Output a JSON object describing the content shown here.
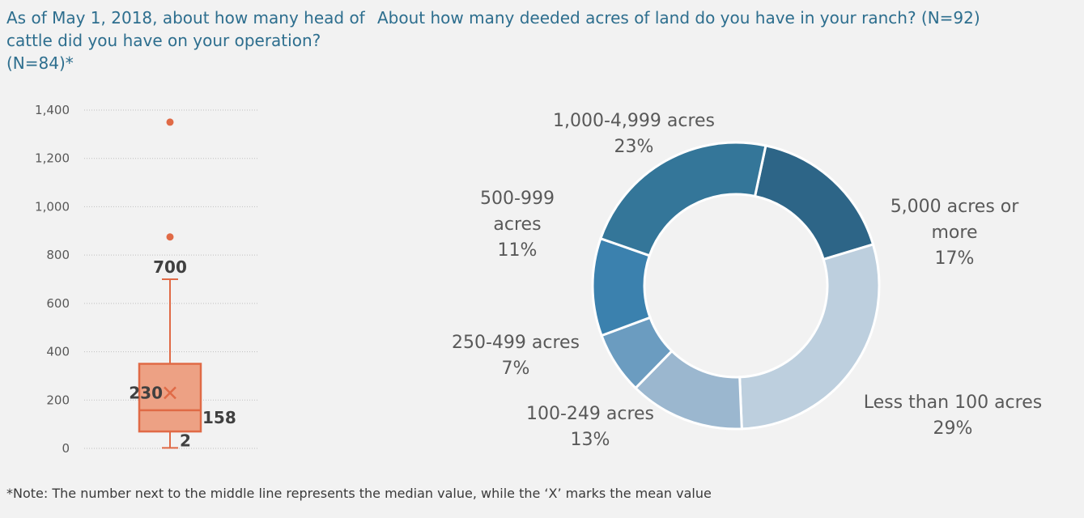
{
  "colors": {
    "title": "#2d6e8e",
    "box_fill": "#eda184",
    "box_stroke": "#e06a46",
    "gridline": "#bfbfbf",
    "tick_text": "#595959",
    "label_text": "#595959",
    "value_text": "#404040",
    "background": "#f2f2f2"
  },
  "chart_data": [
    {
      "type": "box",
      "title": "As of May 1, 2018, about how many head of cattle did you have on your operation? (N=84)*",
      "ylim": [
        0,
        1400
      ],
      "y_ticks": [
        0,
        200,
        400,
        600,
        800,
        1000,
        1200,
        1400
      ],
      "y_tick_labels": [
        "0",
        "200",
        "400",
        "600",
        "800",
        "1,000",
        "1,200",
        "1,400"
      ],
      "grid": true,
      "stats": {
        "min": 2,
        "q1": 70,
        "median": 158,
        "mean": 230,
        "q3": 350,
        "max": 700
      },
      "outliers": [
        875,
        1350
      ],
      "labels": {
        "max": "700",
        "mean": "230",
        "median": "158",
        "min": "2"
      }
    },
    {
      "type": "pie",
      "donut": true,
      "title": "About how many deeded acres of land do you have in your ranch? (N=92)",
      "slices": [
        {
          "label": "5,000 acres or more",
          "value": 17,
          "value_label": "17%",
          "color": "#2d6587"
        },
        {
          "label": "Less than 100 acres",
          "value": 29,
          "value_label": "29%",
          "color": "#bdcfde"
        },
        {
          "label": "100-249 acres",
          "value": 13,
          "value_label": "13%",
          "color": "#9bb7cf"
        },
        {
          "label": "250-499 acres",
          "value": 7,
          "value_label": "7%",
          "color": "#6b9cc0"
        },
        {
          "label": "500-999 acres",
          "value": 11,
          "value_label": "11%",
          "color": "#3b81ae"
        },
        {
          "label": "1,000-4,999 acres",
          "value": 23,
          "value_label": "23%",
          "color": "#347699"
        }
      ]
    }
  ],
  "note": "*Note: The number next to the middle line represents the median value, while the ‘X’ marks the mean value"
}
